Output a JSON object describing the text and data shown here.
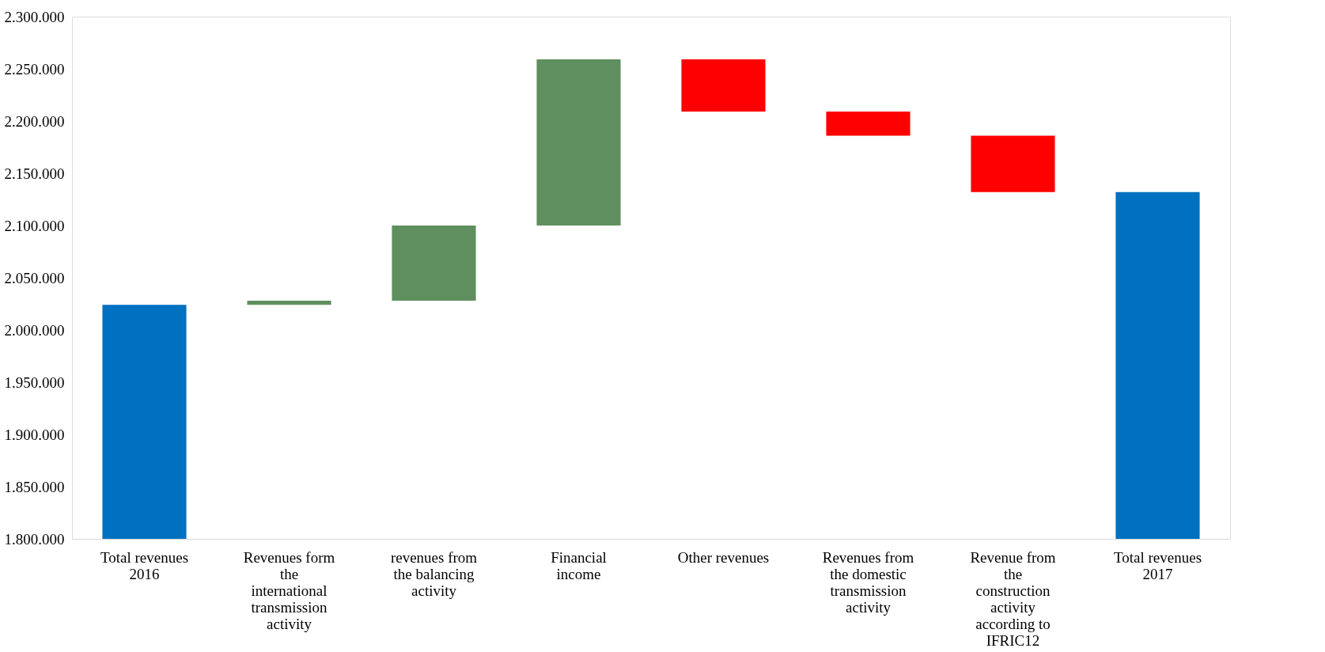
{
  "chart_data": {
    "type": "bar",
    "categories": [
      "Total revenues 2016",
      "Revenues form the international transmission activity",
      "revenues from the balancing activity",
      "Financial income",
      "Other revenues",
      "Revenues from the domestic transmission activity",
      "Revenue from the construction activity according to IFRIC12",
      "Total revenues 2017"
    ],
    "values": [
      2024000,
      4000,
      72000,
      159000,
      -50000,
      -23000,
      -54000,
      2132000
    ],
    "base": [
      null,
      2024000,
      2028000,
      2100000,
      2259000,
      2209000,
      2186000,
      null
    ],
    "colors": [
      "#0070c0",
      "#5f8f5f",
      "#5f8f5f",
      "#5f8f5f",
      "#ff0000",
      "#ff0000",
      "#ff0000",
      "#0070c0"
    ],
    "ylim": [
      1800000,
      2300000
    ],
    "yticks": [
      {
        "value": 1800000,
        "label": "1.800.000"
      },
      {
        "value": 1850000,
        "label": "1.850.000"
      },
      {
        "value": 1900000,
        "label": "1.900.000"
      },
      {
        "value": 1950000,
        "label": "1.950.000"
      },
      {
        "value": 2000000,
        "label": "2.000.000"
      },
      {
        "value": 2050000,
        "label": "2.050.000"
      },
      {
        "value": 2100000,
        "label": "2.100.000"
      },
      {
        "value": 2150000,
        "label": "2.150.000"
      },
      {
        "value": 2200000,
        "label": "2.200.000"
      },
      {
        "value": 2250000,
        "label": "2.250.000"
      },
      {
        "value": 2300000,
        "label": "2.300.000"
      }
    ],
    "grid": false,
    "legend": false
  }
}
